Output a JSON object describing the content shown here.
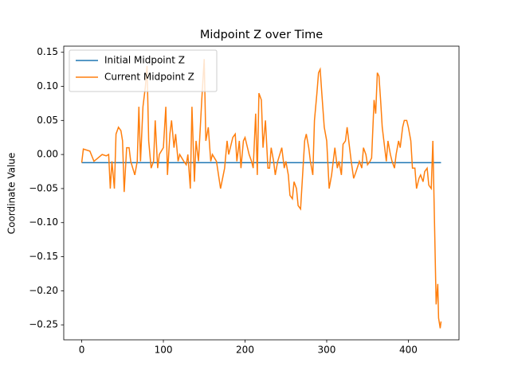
{
  "chart_data": {
    "type": "line",
    "title": "Midpoint Z over Time",
    "y_label": "Coordinate Value",
    "xlim": [
      -22,
      462
    ],
    "ylim": [
      -0.272,
      0.159
    ],
    "xticks": [
      0,
      100,
      200,
      300,
      400
    ],
    "yticks": [
      {
        "value": -0.25,
        "label": "−0.25"
      },
      {
        "value": -0.2,
        "label": "−0.20"
      },
      {
        "value": -0.15,
        "label": "−0.15"
      },
      {
        "value": -0.1,
        "label": "−0.10"
      },
      {
        "value": -0.05,
        "label": "−0.05"
      },
      {
        "value": 0,
        "label": "0.00"
      },
      0.05,
      {
        "value": 0.1,
        "label": "0.10"
      },
      0.15
    ],
    "grid": false,
    "legend": "upper-left",
    "series": [
      {
        "name": "Initial Midpoint Z",
        "color": "#1f77b4",
        "x": [
          0,
          440
        ],
        "values": [
          -0.012,
          -0.012
        ]
      },
      {
        "name": "Current Midpoint Z",
        "color": "#ff7f0e",
        "x": [
          0,
          2,
          10,
          15,
          20,
          25,
          30,
          33,
          35,
          37,
          40,
          42,
          45,
          48,
          50,
          52,
          55,
          58,
          60,
          65,
          68,
          70,
          72,
          75,
          78,
          80,
          82,
          85,
          88,
          90,
          93,
          95,
          100,
          103,
          105,
          108,
          110,
          113,
          115,
          118,
          120,
          125,
          128,
          130,
          133,
          135,
          138,
          140,
          143,
          147,
          150,
          152,
          155,
          158,
          160,
          165,
          170,
          175,
          178,
          180,
          185,
          188,
          190,
          193,
          195,
          198,
          200,
          205,
          208,
          210,
          213,
          215,
          217,
          220,
          222,
          225,
          228,
          230,
          232,
          235,
          237,
          240,
          245,
          248,
          250,
          253,
          255,
          258,
          260,
          263,
          265,
          268,
          270,
          273,
          275,
          278,
          280,
          283,
          285,
          288,
          290,
          292,
          294,
          297,
          300,
          303,
          306,
          308,
          310,
          313,
          315,
          318,
          320,
          323,
          325,
          328,
          330,
          333,
          336,
          340,
          343,
          345,
          348,
          350,
          353,
          355,
          358,
          360,
          362,
          364,
          366,
          368,
          370,
          373,
          375,
          378,
          380,
          383,
          385,
          388,
          390,
          393,
          395,
          398,
          400,
          403,
          405,
          408,
          410,
          413,
          415,
          418,
          420,
          423,
          425,
          428,
          430,
          432,
          434,
          436,
          437,
          439,
          440
        ],
        "values": [
          -0.012,
          0.008,
          0.005,
          -0.01,
          -0.005,
          0.0,
          -0.002,
          0.0,
          -0.05,
          -0.01,
          -0.05,
          0.03,
          0.04,
          0.035,
          0.02,
          -0.055,
          0.01,
          0.01,
          -0.01,
          -0.03,
          -0.01,
          0.07,
          -0.01,
          0.07,
          0.1,
          0.13,
          0.02,
          -0.02,
          -0.01,
          0.05,
          -0.02,
          0.0,
          0.01,
          0.07,
          -0.03,
          0.03,
          0.05,
          0.01,
          0.03,
          -0.01,
          0.0,
          -0.01,
          -0.015,
          0.0,
          -0.05,
          0.07,
          -0.04,
          0.02,
          -0.01,
          0.08,
          0.14,
          0.02,
          0.04,
          -0.01,
          0.0,
          -0.01,
          -0.05,
          -0.02,
          0.02,
          0.0,
          0.025,
          0.03,
          -0.01,
          0.02,
          -0.02,
          0.02,
          0.025,
          0.0,
          -0.01,
          -0.02,
          0.06,
          -0.03,
          0.09,
          0.08,
          0.01,
          0.05,
          -0.02,
          -0.02,
          0.01,
          -0.01,
          -0.03,
          -0.01,
          0.01,
          -0.02,
          -0.01,
          -0.03,
          -0.06,
          -0.065,
          -0.04,
          -0.05,
          -0.075,
          -0.08,
          -0.04,
          0.02,
          0.03,
          0.01,
          -0.01,
          -0.03,
          0.05,
          0.09,
          0.12,
          0.125,
          0.09,
          0.04,
          0.02,
          -0.05,
          -0.03,
          -0.01,
          0.01,
          -0.02,
          -0.01,
          -0.03,
          0.015,
          0.02,
          0.04,
          0.01,
          -0.01,
          -0.035,
          -0.025,
          -0.01,
          -0.02,
          0.01,
          0.0,
          -0.015,
          -0.01,
          -0.005,
          0.08,
          0.06,
          0.12,
          0.115,
          0.08,
          0.04,
          0.02,
          -0.01,
          0.02,
          0.0,
          -0.01,
          -0.02,
          0.0,
          0.02,
          0.01,
          0.04,
          0.05,
          0.05,
          0.04,
          0.02,
          -0.02,
          -0.02,
          -0.05,
          -0.035,
          -0.03,
          -0.04,
          -0.025,
          -0.02,
          -0.045,
          -0.05,
          0.02,
          -0.1,
          -0.22,
          -0.19,
          -0.24,
          -0.255,
          -0.245
        ]
      }
    ]
  }
}
